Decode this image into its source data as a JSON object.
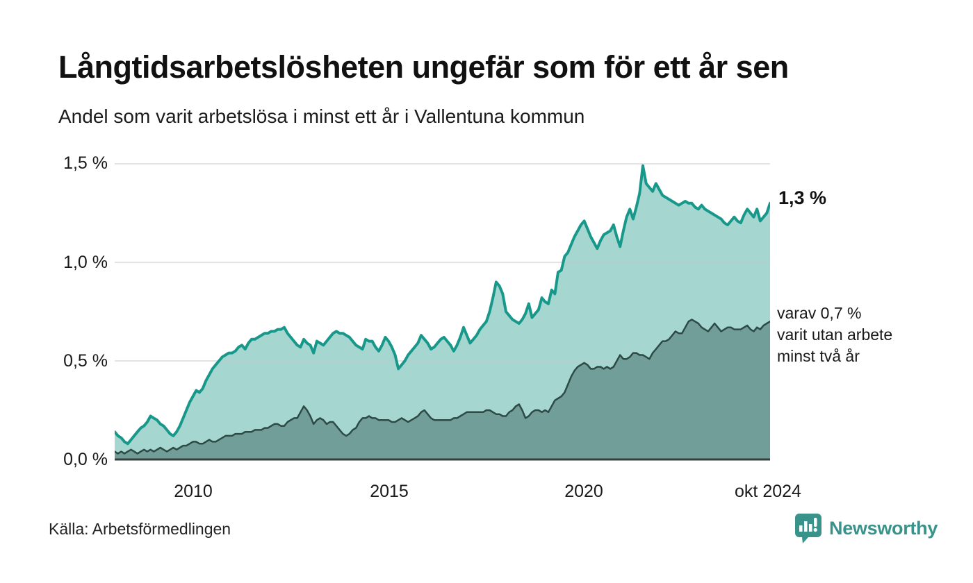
{
  "header": {
    "title": "Långtidsarbetslösheten ungefär som för ett år sen",
    "subtitle": "Andel som varit arbetslösa i minst ett år i Vallentuna kommun"
  },
  "chart_data": {
    "type": "area",
    "x_unit": "month",
    "x_start": "2008-01",
    "x_end": "2024-10",
    "ylim": [
      0,
      1.58
    ],
    "grid": "horizontal",
    "y_ticks": [
      {
        "label": "1,5 %",
        "value": 1.5
      },
      {
        "label": "1,0 %",
        "value": 1.0
      },
      {
        "label": "0,5 %",
        "value": 0.5
      },
      {
        "label": "0,0 %",
        "value": 0.0
      }
    ],
    "x_ticks": [
      {
        "label": "2010",
        "month_index": 24
      },
      {
        "label": "2015",
        "month_index": 84
      },
      {
        "label": "2020",
        "month_index": 144
      },
      {
        "label": "okt 2024",
        "month_index": 201
      }
    ],
    "series": [
      {
        "name": "Andel som varit arbetslösa i minst ett år",
        "line_color": "#17988a",
        "fill_color": "#a5d6d0",
        "line_width": 4,
        "values": [
          0.14,
          0.12,
          0.11,
          0.09,
          0.08,
          0.1,
          0.12,
          0.14,
          0.16,
          0.17,
          0.19,
          0.22,
          0.21,
          0.2,
          0.18,
          0.17,
          0.15,
          0.13,
          0.12,
          0.14,
          0.17,
          0.21,
          0.25,
          0.29,
          0.32,
          0.35,
          0.34,
          0.36,
          0.4,
          0.43,
          0.46,
          0.48,
          0.5,
          0.52,
          0.53,
          0.54,
          0.54,
          0.55,
          0.57,
          0.58,
          0.56,
          0.59,
          0.61,
          0.61,
          0.62,
          0.63,
          0.64,
          0.64,
          0.65,
          0.65,
          0.66,
          0.66,
          0.67,
          0.64,
          0.62,
          0.6,
          0.58,
          0.57,
          0.61,
          0.59,
          0.58,
          0.54,
          0.6,
          0.59,
          0.58,
          0.6,
          0.62,
          0.64,
          0.65,
          0.64,
          0.64,
          0.63,
          0.62,
          0.6,
          0.58,
          0.57,
          0.56,
          0.61,
          0.6,
          0.6,
          0.57,
          0.55,
          0.58,
          0.62,
          0.6,
          0.57,
          0.53,
          0.46,
          0.48,
          0.5,
          0.53,
          0.55,
          0.57,
          0.59,
          0.63,
          0.61,
          0.59,
          0.56,
          0.57,
          0.59,
          0.61,
          0.62,
          0.6,
          0.58,
          0.55,
          0.58,
          0.62,
          0.67,
          0.63,
          0.59,
          0.61,
          0.63,
          0.66,
          0.68,
          0.7,
          0.75,
          0.82,
          0.9,
          0.88,
          0.84,
          0.75,
          0.73,
          0.71,
          0.7,
          0.69,
          0.71,
          0.74,
          0.79,
          0.72,
          0.74,
          0.76,
          0.82,
          0.8,
          0.79,
          0.86,
          0.84,
          0.95,
          0.96,
          1.03,
          1.05,
          1.09,
          1.13,
          1.16,
          1.19,
          1.21,
          1.17,
          1.13,
          1.1,
          1.07,
          1.11,
          1.14,
          1.15,
          1.16,
          1.19,
          1.13,
          1.08,
          1.16,
          1.23,
          1.27,
          1.22,
          1.28,
          1.35,
          1.49,
          1.4,
          1.38,
          1.36,
          1.4,
          1.37,
          1.34,
          1.33,
          1.32,
          1.31,
          1.3,
          1.29,
          1.3,
          1.31,
          1.3,
          1.3,
          1.28,
          1.27,
          1.29,
          1.27,
          1.26,
          1.25,
          1.24,
          1.23,
          1.22,
          1.2,
          1.19,
          1.21,
          1.23,
          1.21,
          1.2,
          1.24,
          1.27,
          1.25,
          1.23,
          1.27,
          1.21,
          1.23,
          1.25,
          1.3
        ]
      },
      {
        "name": "varav utan arbete minst två år",
        "line_color": "#2d4a45",
        "fill_color": "#719e98",
        "line_width": 2.5,
        "values": [
          0.04,
          0.03,
          0.04,
          0.03,
          0.04,
          0.05,
          0.04,
          0.03,
          0.04,
          0.05,
          0.04,
          0.05,
          0.04,
          0.05,
          0.06,
          0.05,
          0.04,
          0.05,
          0.06,
          0.05,
          0.06,
          0.07,
          0.07,
          0.08,
          0.09,
          0.09,
          0.08,
          0.08,
          0.09,
          0.1,
          0.09,
          0.09,
          0.1,
          0.11,
          0.12,
          0.12,
          0.12,
          0.13,
          0.13,
          0.13,
          0.14,
          0.14,
          0.14,
          0.15,
          0.15,
          0.15,
          0.16,
          0.16,
          0.17,
          0.18,
          0.18,
          0.17,
          0.17,
          0.19,
          0.2,
          0.21,
          0.21,
          0.24,
          0.27,
          0.25,
          0.22,
          0.18,
          0.2,
          0.21,
          0.2,
          0.18,
          0.19,
          0.19,
          0.17,
          0.15,
          0.13,
          0.12,
          0.13,
          0.15,
          0.16,
          0.19,
          0.21,
          0.21,
          0.22,
          0.21,
          0.21,
          0.2,
          0.2,
          0.2,
          0.2,
          0.19,
          0.19,
          0.2,
          0.21,
          0.2,
          0.19,
          0.2,
          0.21,
          0.22,
          0.24,
          0.25,
          0.23,
          0.21,
          0.2,
          0.2,
          0.2,
          0.2,
          0.2,
          0.2,
          0.21,
          0.21,
          0.22,
          0.23,
          0.24,
          0.24,
          0.24,
          0.24,
          0.24,
          0.24,
          0.25,
          0.25,
          0.24,
          0.23,
          0.23,
          0.22,
          0.22,
          0.24,
          0.25,
          0.27,
          0.28,
          0.25,
          0.21,
          0.22,
          0.24,
          0.25,
          0.25,
          0.24,
          0.25,
          0.24,
          0.27,
          0.3,
          0.31,
          0.32,
          0.34,
          0.38,
          0.42,
          0.45,
          0.47,
          0.48,
          0.49,
          0.48,
          0.46,
          0.46,
          0.47,
          0.47,
          0.46,
          0.47,
          0.46,
          0.47,
          0.5,
          0.53,
          0.51,
          0.51,
          0.52,
          0.54,
          0.54,
          0.53,
          0.53,
          0.52,
          0.51,
          0.54,
          0.56,
          0.58,
          0.6,
          0.6,
          0.61,
          0.63,
          0.65,
          0.64,
          0.64,
          0.67,
          0.7,
          0.71,
          0.7,
          0.69,
          0.67,
          0.66,
          0.65,
          0.67,
          0.69,
          0.67,
          0.65,
          0.66,
          0.67,
          0.67,
          0.66,
          0.66,
          0.66,
          0.67,
          0.68,
          0.66,
          0.65,
          0.67,
          0.66,
          0.68,
          0.69,
          0.7
        ]
      }
    ],
    "annotations": {
      "end_label": "1,3 %",
      "secondary": [
        "varav 0,7 %",
        "varit utan arbete",
        "minst två år"
      ]
    }
  },
  "footer": {
    "source": "Källa: Arbetsförmedlingen",
    "brand": "Newsworthy"
  },
  "colors": {
    "accent_line": "#17988a",
    "light_fill": "#a5d6d0",
    "dark_fill": "#719e98",
    "dark_line": "#2d4a45",
    "grid": "#c4c7c6",
    "baseline": "#363f3d",
    "brand_teal": "#3a938b",
    "text": "#1a1a1a"
  }
}
